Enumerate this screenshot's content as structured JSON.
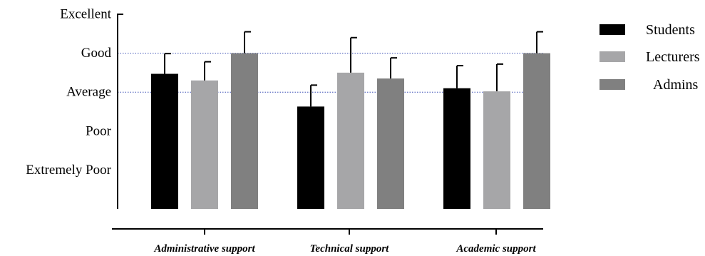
{
  "chart_data": {
    "type": "bar",
    "categories": [
      "Administrative support",
      "Technical support",
      "Academic support"
    ],
    "y_tick_labels": [
      "Extremely Poor",
      "Poor",
      "Average",
      "Good",
      "Excellent"
    ],
    "ylim": [
      0,
      5
    ],
    "series": [
      {
        "name": "Students",
        "color": "#000000",
        "values": [
          3.47,
          2.63,
          3.1
        ],
        "errors": [
          0.52,
          0.55,
          0.58
        ]
      },
      {
        "name": "Lecturers",
        "color": "#a6a6a8",
        "values": [
          3.3,
          3.5,
          3.02
        ],
        "errors": [
          0.48,
          0.9,
          0.7
        ]
      },
      {
        "name": "Admins",
        "color": "#808080",
        "values": [
          4.0,
          3.35,
          4.0
        ],
        "errors": [
          0.55,
          0.53,
          0.55
        ]
      }
    ],
    "reference_lines": [
      3,
      4
    ],
    "reference_line_color": "#3b4fb5",
    "grid": false,
    "legend_position": "right"
  }
}
